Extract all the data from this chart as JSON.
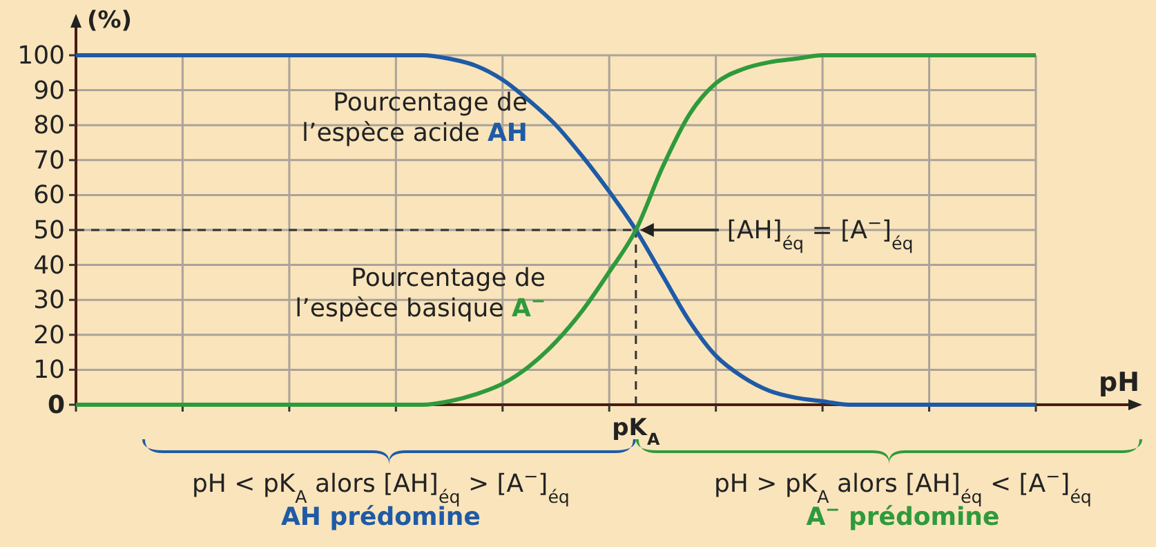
{
  "chart_data": {
    "type": "line",
    "xlabel": "pH",
    "ylabel": "(%)",
    "categories": [
      null,
      null,
      null,
      null,
      null,
      null,
      null,
      null,
      null,
      null,
      null,
      null,
      null,
      null,
      null,
      null,
      null,
      null,
      null,
      null,
      null,
      null,
      null,
      null,
      null,
      null,
      null,
      null,
      null,
      null,
      null,
      null,
      null,
      null,
      null,
      null,
      null
    ],
    "ylim": [
      0,
      100
    ],
    "yticks": [
      0,
      10,
      20,
      30,
      40,
      50,
      60,
      70,
      80,
      90,
      100
    ],
    "grid": true,
    "legend": false,
    "marker": "none",
    "line_style": "solid",
    "series": [
      {
        "name": "Pourcentage de l’espèce acide AH",
        "color": "#1f5aa6",
        "values": [
          100,
          100,
          100,
          100,
          100,
          100,
          100,
          100,
          100,
          100,
          100,
          100,
          100,
          100,
          99,
          97,
          93,
          87,
          80,
          71,
          61,
          50,
          37,
          24,
          14,
          8,
          4,
          2,
          1,
          0,
          0,
          0,
          0,
          0,
          0,
          0,
          0
        ]
      },
      {
        "name": "Pourcentage de l’espèce basique A$^{−}$",
        "color": "#2f9a3c",
        "values": [
          0,
          0,
          0,
          0,
          0,
          0,
          0,
          0,
          0,
          0,
          0,
          0,
          0,
          0,
          1,
          3,
          6,
          11,
          18,
          27,
          38,
          50,
          68,
          83,
          92,
          96,
          98,
          99,
          100,
          100,
          100,
          100,
          100,
          100,
          100,
          100,
          100
        ]
      }
    ],
    "ref_lines": [
      {
        "axis": "y",
        "value": 50,
        "line_style": "dashed"
      }
    ],
    "annotations": [
      "[AH]$_{éq}$ = [A$^{−}$]$_{éq}$",
      "pK$_{A}$",
      "pH < pK$_{A}$ alors [AH]$_{éq}$ > [A$^{−}$]$_{éq}$",
      "AH prédomine",
      "pH > pK$_{A}$ alors [AH]$_{éq}$ < [A$^{−}$]$_{éq}$",
      "A$^{−}$ prédomine"
    ]
  }
}
